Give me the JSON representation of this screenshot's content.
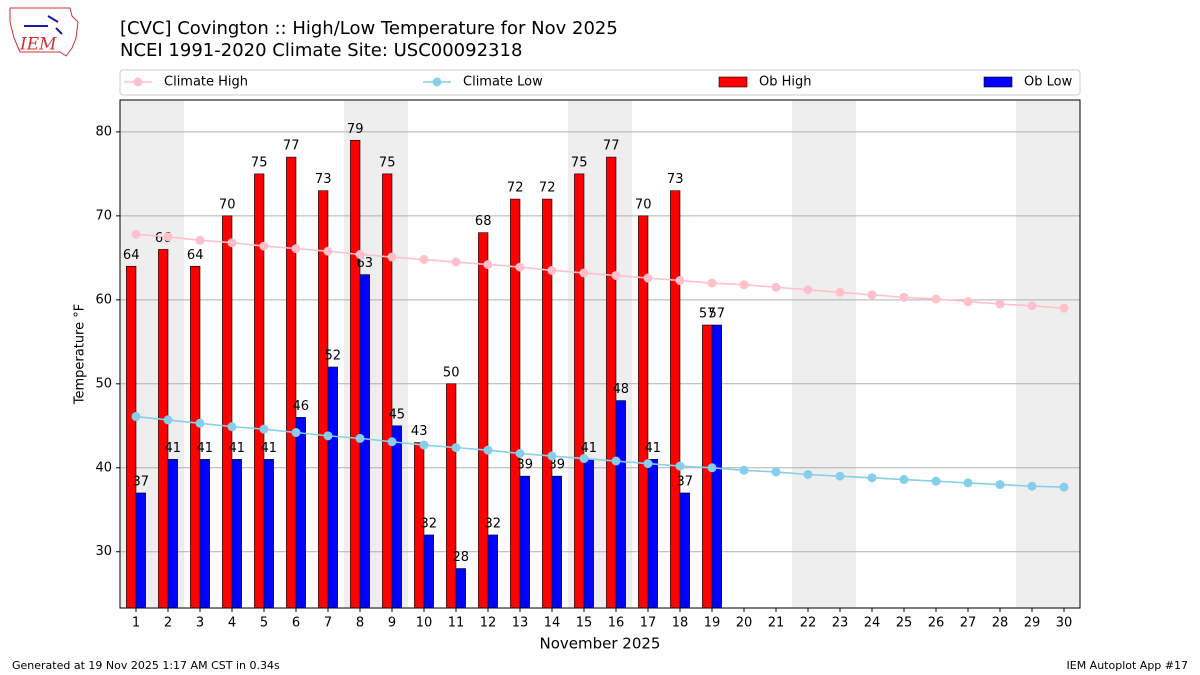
{
  "chart_data": {
    "type": "bar",
    "logo": "IEM",
    "title": "[CVC] Covington :: High/Low Temperature for Nov 2025",
    "subtitle": "NCEI 1991-2020 Climate Site: USC00092318",
    "ylabel": "Temperature °F",
    "xlabel": "November 2025",
    "categories": [
      1,
      2,
      3,
      4,
      5,
      6,
      7,
      8,
      9,
      10,
      11,
      12,
      13,
      14,
      15,
      16,
      17,
      18,
      19,
      20,
      21,
      22,
      23,
      24,
      25,
      26,
      27,
      28,
      29,
      30
    ],
    "xlim": [
      0.5,
      30.5
    ],
    "ylim": [
      23.3,
      83.8
    ],
    "yticks": [
      30,
      40,
      50,
      60,
      70,
      80
    ],
    "grid": true,
    "series": [
      {
        "name": "Climate High",
        "type": "line",
        "color": "#ffc0cb",
        "values": [
          67.8,
          67.5,
          67.1,
          66.8,
          66.4,
          66.1,
          65.8,
          65.4,
          65.1,
          64.8,
          64.5,
          64.2,
          63.9,
          63.5,
          63.2,
          62.9,
          62.6,
          62.3,
          62.0,
          61.8,
          61.5,
          61.2,
          60.9,
          60.6,
          60.3,
          60.1,
          59.8,
          59.5,
          59.3,
          59.0
        ]
      },
      {
        "name": "Climate Low",
        "type": "line",
        "color": "#87ceeb",
        "values": [
          46.1,
          45.7,
          45.3,
          44.9,
          44.6,
          44.2,
          43.8,
          43.5,
          43.1,
          42.7,
          42.4,
          42.1,
          41.7,
          41.4,
          41.1,
          40.8,
          40.5,
          40.2,
          40.0,
          39.7,
          39.5,
          39.2,
          39.0,
          38.8,
          38.6,
          38.4,
          38.2,
          38.0,
          37.8,
          37.7
        ]
      },
      {
        "name": "Ob High",
        "type": "bar",
        "color": "#ff0000",
        "values": [
          64,
          66,
          64,
          70,
          75,
          77,
          73,
          79,
          75,
          43,
          50,
          68,
          72,
          72,
          75,
          77,
          70,
          73,
          57,
          null,
          null,
          null,
          null,
          null,
          null,
          null,
          null,
          null,
          null,
          null
        ]
      },
      {
        "name": "Ob Low",
        "type": "bar",
        "color": "#0000ff",
        "values": [
          37,
          41,
          41,
          41,
          41,
          46,
          52,
          63,
          45,
          32,
          28,
          32,
          39,
          39,
          41,
          48,
          41,
          37,
          57,
          null,
          null,
          null,
          null,
          null,
          null,
          null,
          null,
          null,
          null,
          null
        ]
      }
    ],
    "footer_left": "Generated at 19 Nov 2025 1:17 AM CST in 0.34s",
    "footer_right": "IEM Autoplot App #17"
  }
}
